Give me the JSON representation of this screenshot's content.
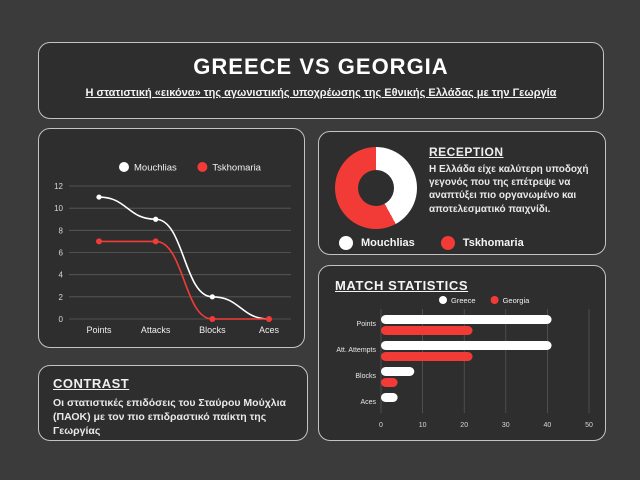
{
  "header": {
    "title": "GREECE VS GEORGIA",
    "subtitle": "Η στατιστική «εικόνα» της αγωνιστικής υποχρέωσης της Εθνικής Ελλάδας με την Γεωργία"
  },
  "colors": {
    "accent_red": "#f23b36",
    "white": "#ffffff",
    "panel_bg": "#2e2e2e",
    "page_bg": "#3b3b3b",
    "grid": "rgba(255,255,255,0.22)"
  },
  "chart_data": [
    {
      "id": "player-comparison-line",
      "type": "line",
      "categories": [
        "Points",
        "Attacks",
        "Blocks",
        "Aces"
      ],
      "series": [
        {
          "name": "Mouchlias",
          "color": "#ffffff",
          "values": [
            11,
            9,
            2,
            0
          ]
        },
        {
          "name": "Tskhomaria",
          "color": "#f23b36",
          "values": [
            7,
            7,
            0,
            0
          ]
        }
      ],
      "ylim": [
        0,
        12
      ],
      "yticks": [
        0,
        2,
        4,
        6,
        8,
        10,
        12
      ],
      "legend_position": "top",
      "grid": "horizontal"
    },
    {
      "id": "reception-donut",
      "type": "pie",
      "donut": true,
      "title": "RECEPTION",
      "slices": [
        {
          "name": "Mouchlias",
          "color": "#ffffff",
          "value": 42
        },
        {
          "name": "Tskhomaria",
          "color": "#f23b36",
          "value": 58
        }
      ]
    },
    {
      "id": "match-statistics-bar",
      "type": "bar",
      "orientation": "horizontal",
      "title": "MATCH STATISTICS",
      "categories": [
        "Points",
        "Att. Attempts",
        "Blocks",
        "Aces"
      ],
      "series": [
        {
          "name": "Greece",
          "color": "#ffffff",
          "values": [
            41,
            41,
            8,
            4
          ]
        },
        {
          "name": "Georgia",
          "color": "#f23b36",
          "values": [
            22,
            22,
            4,
            0
          ]
        }
      ],
      "xlim": [
        0,
        50
      ],
      "xticks": [
        0,
        10,
        20,
        30,
        40,
        50
      ],
      "legend_position": "top",
      "grid": "vertical"
    }
  ],
  "reception": {
    "heading": "RECEPTION",
    "body": "Η Ελλάδα είχε καλύτερη υποδοχή γεγονός που της επέτρεψε να αναπτύξει πιο οργανωμένο και αποτελεσματικό παιχνίδι."
  },
  "contrast": {
    "heading": "CONTRAST",
    "body": "Οι στατιστικές επιδόσεις του Σταύρου Μούχλια (ΠΑΟΚ) με τον πιο επιδραστικό παίκτη της Γεωργίας"
  }
}
